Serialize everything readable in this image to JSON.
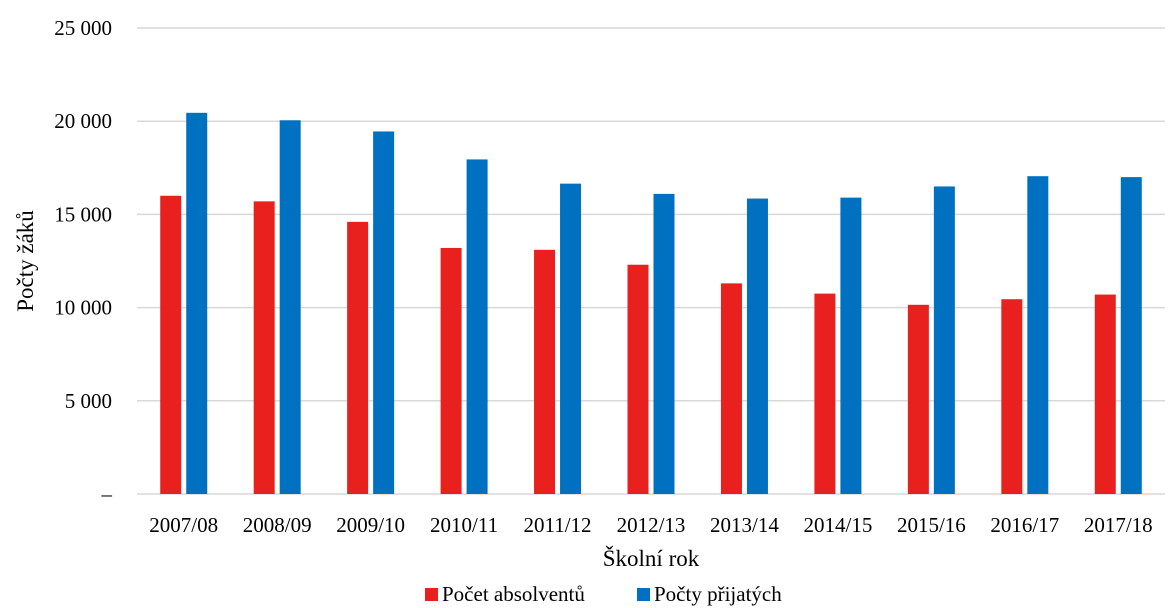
{
  "chart_data": {
    "type": "bar",
    "title": "",
    "xlabel": "Školní rok",
    "ylabel": "Počty žáků",
    "categories": [
      "2007/08",
      "2008/09",
      "2009/10",
      "2010/11",
      "2011/12",
      "2012/13",
      "2013/14",
      "2014/15",
      "2015/16",
      "2016/17",
      "2017/18"
    ],
    "series": [
      {
        "name": "Počet absolventů",
        "color": "#e8211f",
        "values": [
          16000,
          15700,
          14600,
          13200,
          13100,
          12300,
          11300,
          10750,
          10150,
          10450,
          10700
        ]
      },
      {
        "name": "Počty přijatých",
        "color": "#0070c0",
        "values": [
          20450,
          20050,
          19450,
          17950,
          16650,
          16100,
          15850,
          15900,
          16500,
          17050,
          17000
        ]
      }
    ],
    "ylim": [
      0,
      25000
    ],
    "yticks": [
      {
        "value": 0,
        "label": "–"
      },
      {
        "value": 5000,
        "label": "5 000"
      },
      {
        "value": 10000,
        "label": "10 000"
      },
      {
        "value": 15000,
        "label": "15 000"
      },
      {
        "value": 20000,
        "label": "20 000"
      },
      {
        "value": 25000,
        "label": "25 000"
      }
    ],
    "grid": true,
    "gridColor": "#d9d9d9",
    "legend": "bottom"
  }
}
